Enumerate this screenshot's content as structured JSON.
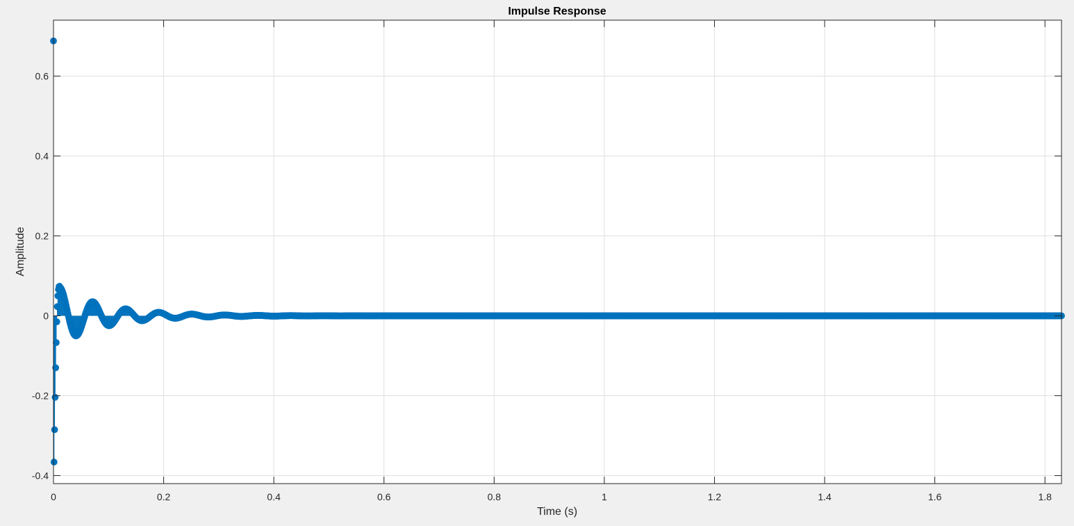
{
  "chart_data": {
    "type": "stem",
    "title": "Impulse Response",
    "xlabel": "Time (s)",
    "ylabel": "Amplitude",
    "xlim": [
      0,
      1.83
    ],
    "ylim": [
      -0.42,
      0.74
    ],
    "xticks": [
      0,
      0.2,
      0.4,
      0.6,
      0.8,
      1,
      1.2,
      1.4,
      1.6,
      1.8
    ],
    "xtick_labels": [
      "0",
      "0.2",
      "0.4",
      "0.6",
      "0.8",
      "1",
      "1.2",
      "1.4",
      "1.6",
      "1.8"
    ],
    "yticks": [
      -0.4,
      -0.2,
      0,
      0.2,
      0.4,
      0.6
    ],
    "ytick_labels": [
      "-0.4",
      "-0.2",
      "0",
      "0.2",
      "0.4",
      "0.6"
    ],
    "grid": true,
    "series_color": "#0072bd",
    "sample_period": 0.001,
    "t_end": 1.83,
    "initial_samples": [
      {
        "t": 0.0,
        "y": 0.688
      },
      {
        "t": 0.001,
        "y": -0.366
      },
      {
        "t": 0.002,
        "y": -0.285
      },
      {
        "t": 0.003,
        "y": -0.204
      },
      {
        "t": 0.004,
        "y": -0.13
      },
      {
        "t": 0.005,
        "y": -0.067
      },
      {
        "t": 0.006,
        "y": -0.015
      },
      {
        "t": 0.007,
        "y": 0.023
      },
      {
        "t": 0.008,
        "y": 0.05
      },
      {
        "t": 0.009,
        "y": 0.066
      },
      {
        "t": 0.01,
        "y": 0.073
      },
      {
        "t": 0.011,
        "y": 0.074
      },
      {
        "t": 0.012,
        "y": 0.071
      }
    ],
    "decay_model": {
      "start_t": 0.012,
      "amplitude": 0.071,
      "period": 0.06,
      "tau": 0.085
    }
  }
}
